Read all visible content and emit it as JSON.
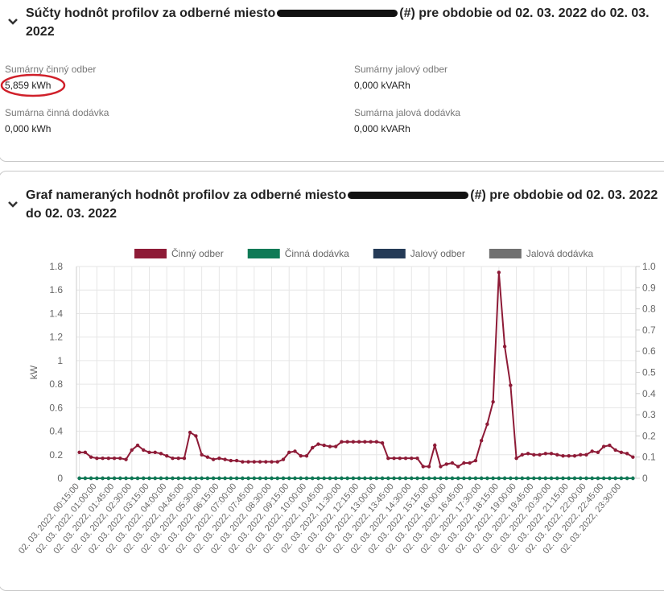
{
  "summary": {
    "title_start": "Súčty hodnôt profilov za odberné miesto",
    "title_end": "(#) pre obdobie od 02. 03. 2022 do 02. 03. 2022",
    "fields": [
      {
        "label": "Sumárny činný odber",
        "value": "5,859 kWh"
      },
      {
        "label": "Sumárny jalový odber",
        "value": "0,000 kVARh"
      },
      {
        "label": "Sumárna činná dodávka",
        "value": "0,000 kWh"
      },
      {
        "label": "Sumárna jalová dodávka",
        "value": "0,000 kVARh"
      }
    ]
  },
  "graph_section": {
    "title_start": "Graf nameraných hodnôt profilov za odberné miesto",
    "title_end": "(#) pre obdobie od 02. 03. 2022 do 02. 03. 2022"
  },
  "chart_data": {
    "type": "line",
    "y_label": "kW",
    "categories": [
      "02. 03. 2022, 00:15:00",
      null,
      null,
      "02. 03. 2022, 01:00:00",
      null,
      null,
      "02. 03. 2022, 01:45:00",
      null,
      null,
      "02. 03. 2022, 02:30:00",
      null,
      null,
      "02. 03. 2022, 03:15:00",
      null,
      null,
      "02. 03. 2022, 04:00:00",
      null,
      null,
      "02. 03. 2022, 04:45:00",
      null,
      null,
      "02. 03. 2022, 05:30:00",
      null,
      null,
      "02. 03. 2022, 06:15:00",
      null,
      null,
      "02. 03. 2022, 07:00:00",
      null,
      null,
      "02. 03. 2022, 07:45:00",
      null,
      null,
      "02. 03. 2022, 08:30:00",
      null,
      null,
      "02. 03. 2022, 09:15:00",
      null,
      null,
      "02. 03. 2022, 10:00:00",
      null,
      null,
      "02. 03. 2022, 10:45:00",
      null,
      null,
      "02. 03. 2022, 11:30:00",
      null,
      null,
      "02. 03. 2022, 12:15:00",
      null,
      null,
      "02. 03. 2022, 13:00:00",
      null,
      null,
      "02. 03. 2022, 13:45:00",
      null,
      null,
      "02. 03. 2022, 14:30:00",
      null,
      null,
      "02. 03. 2022, 15:15:00",
      null,
      null,
      "02. 03. 2022, 16:00:00",
      null,
      null,
      "02. 03. 2022, 16:45:00",
      null,
      null,
      "02. 03. 2022, 17:30:00",
      null,
      null,
      "02. 03. 2022, 18:15:00",
      null,
      null,
      "02. 03. 2022, 19:00:00",
      null,
      null,
      "02. 03. 2022, 19:45:00",
      null,
      null,
      "02. 03. 2022, 20:30:00",
      null,
      null,
      "02. 03. 2022, 21:15:00",
      null,
      null,
      "02. 03. 2022, 22:00:00",
      null,
      null,
      "02. 03. 2022, 22:45:00",
      null,
      null,
      "02. 03. 2022, 23:30:00",
      null,
      null
    ],
    "series": [
      {
        "name": "Činný odber",
        "color": "#8e1b37",
        "values": [
          0.22,
          0.22,
          0.18,
          0.17,
          0.17,
          0.17,
          0.17,
          0.17,
          0.16,
          0.24,
          0.28,
          0.24,
          0.22,
          0.22,
          0.21,
          0.19,
          0.17,
          0.17,
          0.17,
          0.39,
          0.36,
          0.2,
          0.18,
          0.16,
          0.17,
          0.16,
          0.15,
          0.15,
          0.14,
          0.14,
          0.14,
          0.14,
          0.14,
          0.14,
          0.14,
          0.16,
          0.22,
          0.23,
          0.19,
          0.19,
          0.26,
          0.29,
          0.28,
          0.27,
          0.27,
          0.31,
          0.31,
          0.31,
          0.31,
          0.31,
          0.31,
          0.31,
          0.3,
          0.17,
          0.17,
          0.17,
          0.17,
          0.17,
          0.17,
          0.1,
          0.1,
          0.28,
          0.1,
          0.12,
          0.13,
          0.1,
          0.13,
          0.13,
          0.15,
          0.32,
          0.46,
          0.65,
          1.75,
          1.12,
          0.79,
          0.17,
          0.2,
          0.21,
          0.2,
          0.2,
          0.21,
          0.21,
          0.2,
          0.19,
          0.19,
          0.19,
          0.2,
          0.2,
          0.23,
          0.22,
          0.27,
          0.28,
          0.24,
          0.22,
          0.21,
          0.18
        ]
      },
      {
        "name": "Činná dodávka",
        "color": "#0f7a56",
        "values": [
          0,
          0,
          0,
          0,
          0,
          0,
          0,
          0,
          0,
          0,
          0,
          0,
          0,
          0,
          0,
          0,
          0,
          0,
          0,
          0,
          0,
          0,
          0,
          0,
          0,
          0,
          0,
          0,
          0,
          0,
          0,
          0,
          0,
          0,
          0,
          0,
          0,
          0,
          0,
          0,
          0,
          0,
          0,
          0,
          0,
          0,
          0,
          0,
          0,
          0,
          0,
          0,
          0,
          0,
          0,
          0,
          0,
          0,
          0,
          0,
          0,
          0,
          0,
          0,
          0,
          0,
          0,
          0,
          0,
          0,
          0,
          0,
          0,
          0,
          0,
          0,
          0,
          0,
          0,
          0,
          0,
          0,
          0,
          0,
          0,
          0,
          0,
          0,
          0,
          0,
          0,
          0,
          0,
          0,
          0,
          0
        ]
      },
      {
        "name": "Jalový odber",
        "color": "#243a56",
        "axis": "y2",
        "values": [
          0,
          0,
          0,
          0,
          0,
          0,
          0,
          0,
          0,
          0,
          0,
          0,
          0,
          0,
          0,
          0,
          0,
          0,
          0,
          0,
          0,
          0,
          0,
          0,
          0,
          0,
          0,
          0,
          0,
          0,
          0,
          0,
          0,
          0,
          0,
          0,
          0,
          0,
          0,
          0,
          0,
          0,
          0,
          0,
          0,
          0,
          0,
          0,
          0,
          0,
          0,
          0,
          0,
          0,
          0,
          0,
          0,
          0,
          0,
          0,
          0,
          0,
          0,
          0,
          0,
          0,
          0,
          0,
          0,
          0,
          0,
          0,
          0,
          0,
          0,
          0,
          0,
          0,
          0,
          0,
          0,
          0,
          0,
          0,
          0,
          0,
          0,
          0,
          0,
          0,
          0,
          0,
          0,
          0,
          0,
          0
        ]
      },
      {
        "name": "Jalová dodávka",
        "color": "#707070",
        "axis": "y2",
        "values": [
          0,
          0,
          0,
          0,
          0,
          0,
          0,
          0,
          0,
          0,
          0,
          0,
          0,
          0,
          0,
          0,
          0,
          0,
          0,
          0,
          0,
          0,
          0,
          0,
          0,
          0,
          0,
          0,
          0,
          0,
          0,
          0,
          0,
          0,
          0,
          0,
          0,
          0,
          0,
          0,
          0,
          0,
          0,
          0,
          0,
          0,
          0,
          0,
          0,
          0,
          0,
          0,
          0,
          0,
          0,
          0,
          0,
          0,
          0,
          0,
          0,
          0,
          0,
          0,
          0,
          0,
          0,
          0,
          0,
          0,
          0,
          0,
          0,
          0,
          0,
          0,
          0,
          0,
          0,
          0,
          0,
          0,
          0,
          0,
          0,
          0,
          0,
          0,
          0,
          0,
          0,
          0,
          0,
          0,
          0,
          0
        ]
      }
    ],
    "ylim": [
      0,
      1.8
    ],
    "yticks": [
      0,
      0.2,
      0.4,
      0.6,
      0.8,
      1,
      1.2,
      1.4,
      1.6,
      1.8
    ],
    "y2lim": [
      0,
      1
    ],
    "y2ticks": [
      0,
      0.1,
      0.2,
      0.3,
      0.4,
      0.5,
      0.6,
      0.7,
      0.8,
      0.9,
      {
        "value": 1,
        "label": "1.0"
      }
    ],
    "grid": true,
    "legend": "top"
  }
}
